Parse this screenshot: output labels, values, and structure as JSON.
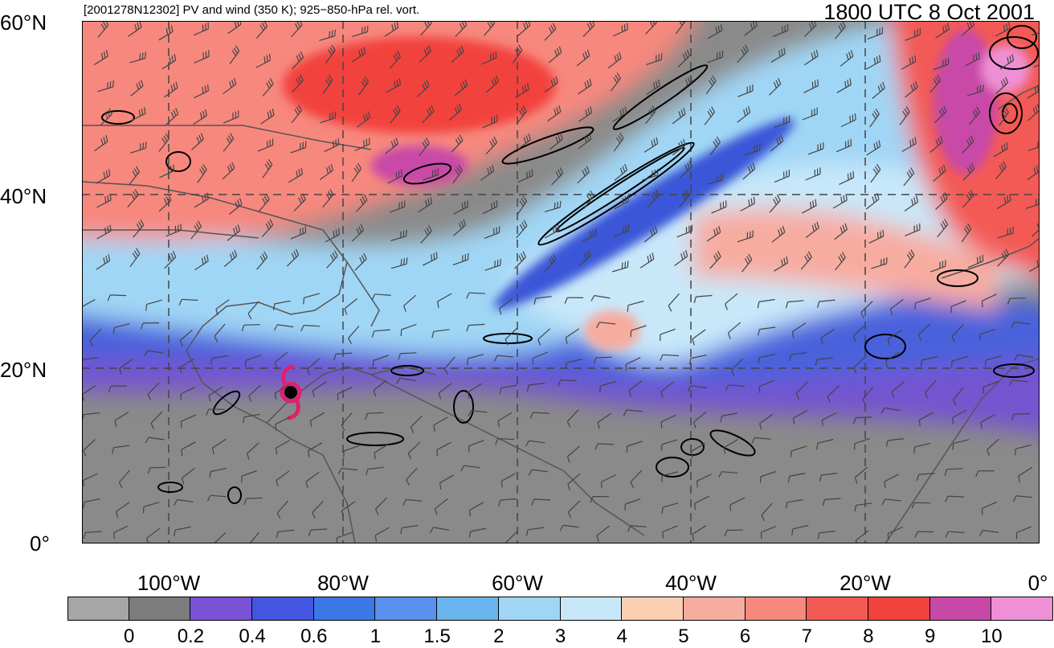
{
  "header": {
    "left_title": "[2001278N12302] PV and wind (350 K); 925−850-hPa rel. vort.",
    "right_title": "1800 UTC 8 Oct 2001"
  },
  "map": {
    "lat_labels": [
      "60°N",
      "40°N",
      "20°N",
      "0°"
    ],
    "lon_labels": [
      "100°W",
      "80°W",
      "60°W",
      "40°W",
      "20°W",
      "0°"
    ],
    "lat_range": [
      0,
      60
    ],
    "lon_range": [
      -110,
      0
    ],
    "gridlines": "dashed",
    "storm_symbol_color": "#e0206e"
  },
  "colorbar": {
    "colors": [
      "#a6a6a6",
      "#7c7c7c",
      "#7a52d6",
      "#4455e0",
      "#3a78e6",
      "#5a90ee",
      "#6ab4ee",
      "#a0d6f5",
      "#c8e8fa",
      "#fbd0b2",
      "#f7aca0",
      "#f7887e",
      "#f35a54",
      "#f2423c",
      "#c848a8",
      "#ee90d6"
    ],
    "tick_labels": [
      "0",
      "0.2",
      "0.4",
      "0.6",
      "1",
      "1.5",
      "2",
      "3",
      "4",
      "5",
      "6",
      "7",
      "8",
      "9",
      "10"
    ]
  }
}
